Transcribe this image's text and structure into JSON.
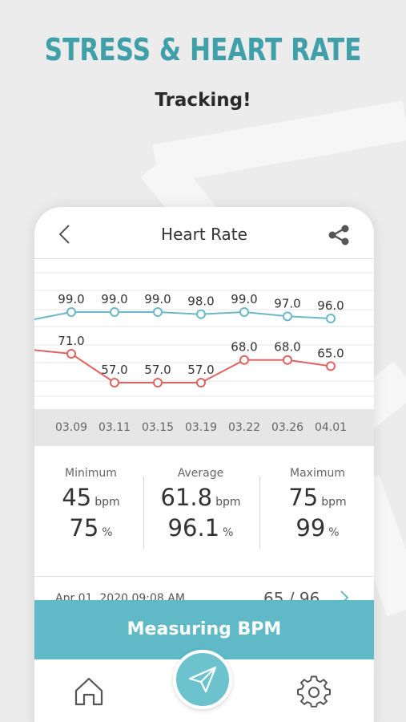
{
  "headline": "STRESS & HEART RATE",
  "subhead": "Tracking!",
  "screen": {
    "title": "Heart Rate",
    "back_icon": "chevron-left-icon",
    "share_icon": "share-icon"
  },
  "chart_data": {
    "type": "line",
    "categories": [
      "03.09",
      "03.11",
      "03.15",
      "03.19",
      "03.22",
      "03.26",
      "04.01"
    ],
    "series": [
      {
        "values": [
          99.0,
          99.0,
          99.0,
          98.0,
          99.0,
          97.0,
          96.0
        ],
        "color": "#6bb8c8"
      },
      {
        "values": [
          71.0,
          57.0,
          57.0,
          57.0,
          68.0,
          68.0,
          65.0
        ],
        "color": "#de6464"
      }
    ],
    "value_labels": [
      [
        "99.0",
        "99.0",
        "99.0",
        "98.0",
        "99.0",
        "97.0",
        "96.0"
      ],
      [
        "71.0",
        "57.0",
        "57.0",
        "57.0",
        "68.0",
        "68.0",
        "65.0"
      ]
    ],
    "grid": true,
    "title": "",
    "xlabel": "",
    "ylabel": ""
  },
  "stats": {
    "minimum": {
      "label": "Minimum",
      "bpm": "45",
      "bpm_unit": "bpm",
      "pct": "75",
      "pct_unit": "%"
    },
    "average": {
      "label": "Average",
      "bpm": "61.8",
      "bpm_unit": "bpm",
      "pct": "96.1",
      "pct_unit": "%"
    },
    "maximum": {
      "label": "Maximum",
      "bpm": "75",
      "bpm_unit": "bpm",
      "pct": "99",
      "pct_unit": "%"
    }
  },
  "history": {
    "date": "Apr 01, 2020 09:08 AM",
    "value": "65 / 96"
  },
  "measure_button": "Measuring BPM",
  "tabbar": {
    "home_icon": "home-icon",
    "center_icon": "paper-plane-icon",
    "settings_icon": "gear-icon"
  },
  "colors": {
    "brand": "#3fa0aa",
    "button": "#5fb9c6",
    "line_upper": "#6bb8c8",
    "line_lower": "#de6464"
  }
}
